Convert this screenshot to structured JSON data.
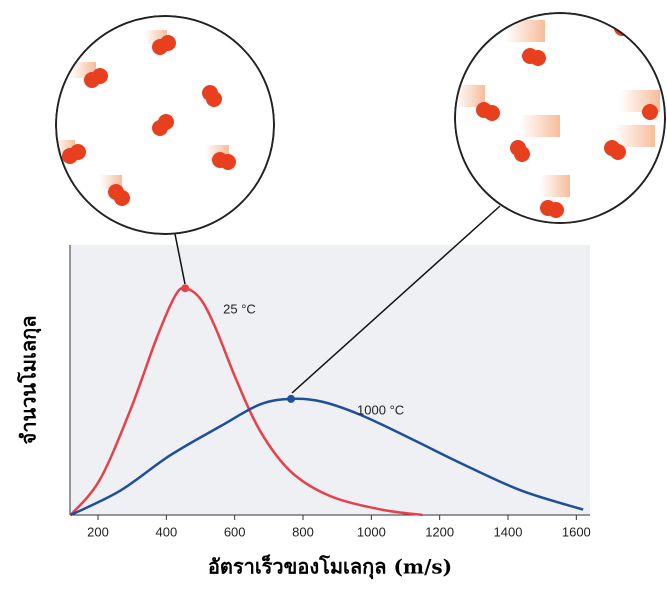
{
  "chart_data": {
    "type": "line",
    "xlabel": "อัตราเร็วของโมเลกุล (m/s)",
    "ylabel": "จำนวนโมเลกุล",
    "xlim": [
      118,
      1640
    ],
    "xticks": [
      200,
      400,
      600,
      800,
      1000,
      1200,
      1400,
      1600
    ],
    "ylim": [
      0,
      100
    ],
    "series": [
      {
        "name": "25 °C",
        "color": "#e8404a",
        "x": [
          120,
          205,
          295,
          370,
          425,
          455,
          500,
          545,
          605,
          675,
          765,
          880,
          1030,
          1150
        ],
        "values": [
          0,
          13,
          39,
          65,
          81,
          84,
          80,
          69,
          50,
          31,
          16,
          7,
          2,
          0
        ]
      },
      {
        "name": "1000 °C",
        "color": "#1e4f9c",
        "x": [
          120,
          265,
          410,
          560,
          675,
          765,
          855,
          970,
          1120,
          1265,
          1440,
          1620
        ],
        "values": [
          0,
          9,
          22,
          33,
          41,
          43,
          42,
          37,
          28,
          19,
          9,
          2
        ]
      }
    ]
  }
}
